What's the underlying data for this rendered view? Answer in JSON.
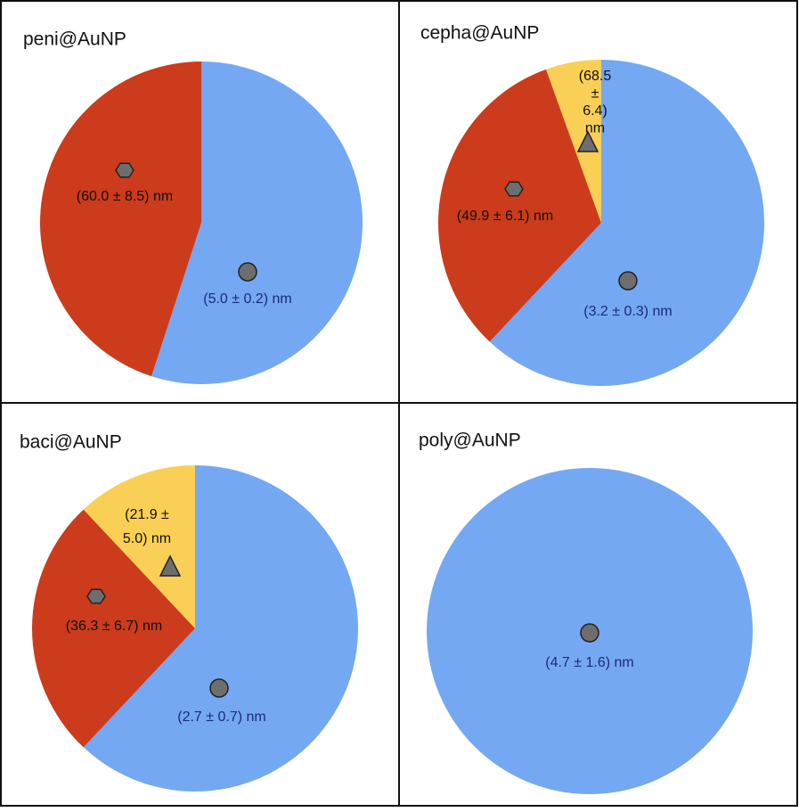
{
  "chart_data": [
    {
      "type": "pie",
      "title": "peni@AuNP",
      "values": [
        55,
        45
      ],
      "colors": [
        "#74a8f2",
        "#cc3b1b"
      ],
      "annotations": [
        [
          "(5.0 ± 0.2) nm"
        ],
        [
          "(60.0 ± 8.5) nm"
        ]
      ]
    },
    {
      "type": "pie",
      "title": "cepha@AuNP",
      "values": [
        62,
        32.5,
        5.5
      ],
      "colors": [
        "#74a8f2",
        "#cc3b1b",
        "#f9cf55"
      ],
      "annotations": [
        [
          "(3.2 ± 0.3) nm"
        ],
        [
          "(49.9 ± 6.1) nm"
        ],
        [
          "(68.5",
          "±",
          "6.4)",
          "nm"
        ]
      ]
    },
    {
      "type": "pie",
      "title": "baci@AuNP",
      "values": [
        62,
        26,
        12
      ],
      "colors": [
        "#74a8f2",
        "#cc3b1b",
        "#f9cf55"
      ],
      "annotations": [
        [
          "(2.7 ± 0.7) nm"
        ],
        [
          "(36.3 ± 6.7) nm"
        ],
        [
          "(21.9 ±",
          "5.0) nm"
        ]
      ]
    },
    {
      "type": "pie",
      "title": "poly@AuNP",
      "values": [
        100
      ],
      "colors": [
        "#74a8f2"
      ],
      "annotations": [
        [
          "(4.7 ± 1.6) nm"
        ]
      ]
    }
  ]
}
